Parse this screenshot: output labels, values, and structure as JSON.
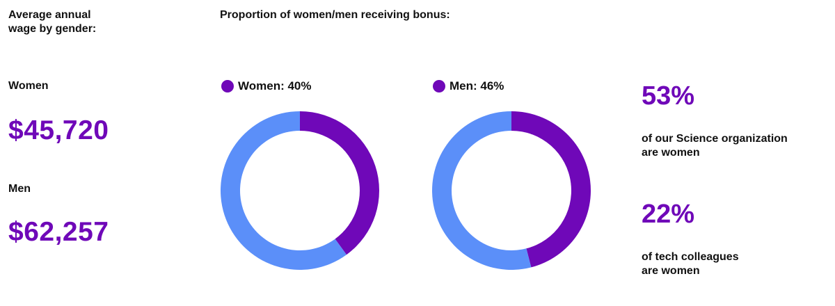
{
  "wage": {
    "title_line1": "Average annual",
    "title_line2": "wage by gender:",
    "women_label": "Women",
    "women_value": "$45,720",
    "men_label": "Men",
    "men_value": "$62,257"
  },
  "bonus": {
    "title": "Proportion of women/men receiving bonus:"
  },
  "stats": [
    {
      "value": "53%",
      "text_line1": "of our Science organization",
      "text_line2": "are women"
    },
    {
      "value": "22%",
      "text_line1": "of tech colleagues",
      "text_line2": "are women"
    }
  ],
  "colors": {
    "accent": "#6f08b8",
    "remainder": "#5b8ff9",
    "text": "#111111"
  },
  "chart_data": [
    {
      "type": "pie",
      "legend": "Women: 40%",
      "values": [
        40,
        60
      ],
      "colors": [
        "#6f08b8",
        "#5b8ff9"
      ]
    },
    {
      "type": "pie",
      "legend": "Men: 46%",
      "values": [
        46,
        54
      ],
      "colors": [
        "#6f08b8",
        "#5b8ff9"
      ]
    }
  ]
}
